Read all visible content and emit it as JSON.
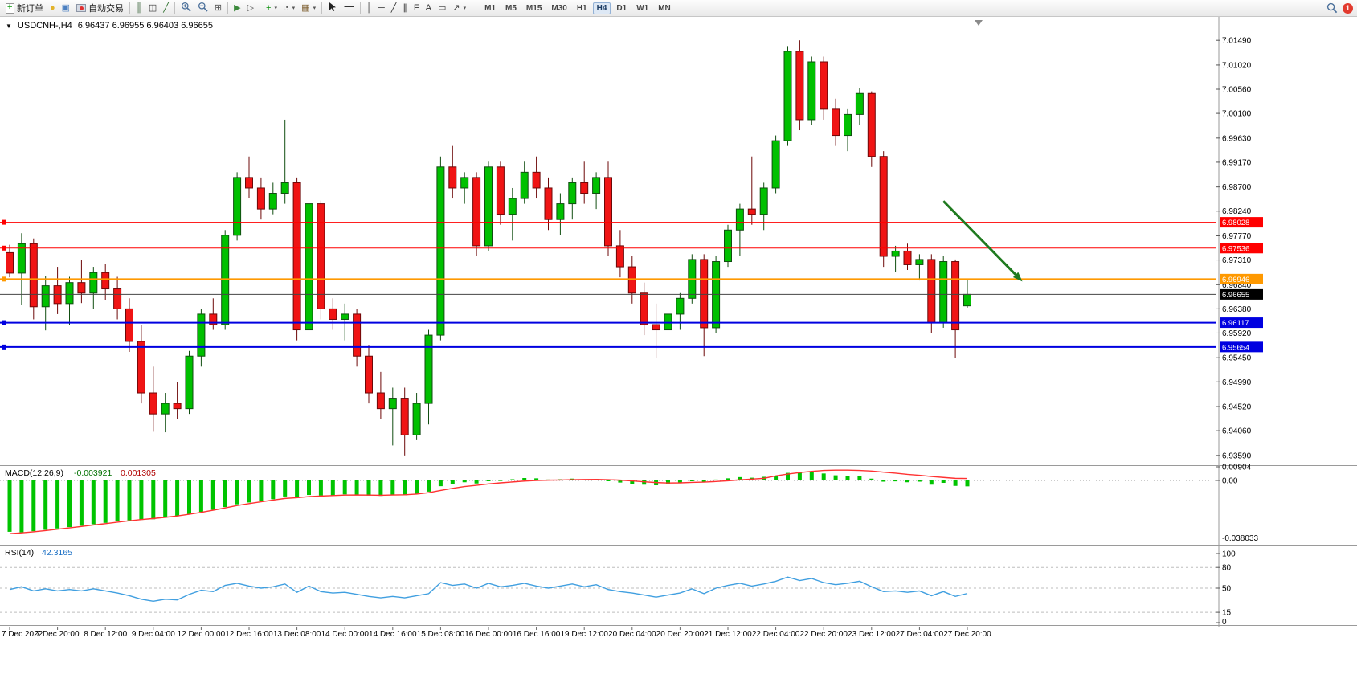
{
  "toolbar": {
    "caret_glyph": "▾",
    "notification_badge": "1",
    "items": [
      {
        "name": "new-order-button",
        "label": "新订单",
        "icon": "doc-plus"
      },
      {
        "name": "lamp-icon",
        "glyph": "●",
        "color": "#e2b32c"
      },
      {
        "name": "monitor-icon",
        "glyph": "▣",
        "color": "#4a7fc1"
      },
      {
        "name": "auto-trading-button",
        "label": "自动交易",
        "icon": "robot"
      },
      {
        "sep": true
      },
      {
        "name": "bar-chart-icon",
        "glyph": "║",
        "color": "#3d663d"
      },
      {
        "name": "candlestick-chart-icon",
        "glyph": "◫",
        "color": "#333333"
      },
      {
        "name": "line-chart-icon",
        "glyph": "╱",
        "color": "#2a6e2a"
      },
      {
        "sep": true
      },
      {
        "name": "zoom-in-icon",
        "icon": "zoom-in"
      },
      {
        "name": "zoom-out-icon",
        "icon": "zoom-out"
      },
      {
        "name": "tile-windows-icon",
        "glyph": "⊞",
        "color": "#555555"
      },
      {
        "sep": true
      },
      {
        "name": "auto-scroll-icon",
        "glyph": "▶",
        "color": "#3c8a3c"
      },
      {
        "name": "chart-shift-icon",
        "glyph": "▷",
        "color": "#555555"
      },
      {
        "sep": true
      },
      {
        "name": "indicators-button",
        "glyph": "+",
        "color": "#0a910a",
        "caret": true
      },
      {
        "name": "periods-button",
        "glyph": "◔",
        "color": "#555555",
        "caret": true
      },
      {
        "name": "templates-button",
        "glyph": "▦",
        "color": "#7a5a2a",
        "caret": true
      },
      {
        "sep": true
      },
      {
        "name": "cursor-icon",
        "icon": "cursor"
      },
      {
        "name": "crosshair-icon",
        "icon": "crosshair"
      },
      {
        "sep": true
      },
      {
        "name": "vertical-line-icon",
        "glyph": "│",
        "color": "#333333"
      },
      {
        "name": "horizontal-line-icon",
        "glyph": "─",
        "color": "#333333"
      },
      {
        "name": "trendline-icon",
        "glyph": "╱",
        "color": "#333333"
      },
      {
        "name": "channel-icon",
        "glyph": "∥",
        "color": "#333333"
      },
      {
        "name": "fibonacci-icon",
        "glyph": "F",
        "color": "#333333"
      },
      {
        "name": "text-icon",
        "glyph": "A",
        "color": "#333333"
      },
      {
        "name": "text-label-icon",
        "glyph": "▭",
        "color": "#333333"
      },
      {
        "name": "arrows-tool-icon",
        "glyph": "↗",
        "color": "#333333",
        "caret": true
      },
      {
        "sep": true
      }
    ],
    "timeframes": {
      "items": [
        "M1",
        "M5",
        "M15",
        "M30",
        "H1",
        "H4",
        "D1",
        "W1",
        "MN"
      ],
      "active": "H4"
    }
  },
  "chart_title": {
    "dropdown_glyph": "▼",
    "symbol_period": "USDCNH-,H4",
    "ohlc": "6.96437 6.96955 6.96403 6.96655"
  },
  "chart_data": {
    "type": "candlestick",
    "symbol": "USDCNH-",
    "timeframe": "H4",
    "current_bar": {
      "open": 6.96437,
      "high": 6.96955,
      "low": 6.96403,
      "close": 6.96655
    },
    "colors": {
      "bull": "#00C000",
      "bull_edge": "#114e11",
      "bear": "#F01414",
      "bear_edge": "#6d0808",
      "red_line": "#FF0000",
      "orange_line": "#FF9900",
      "blue_line": "#0000E0",
      "current_line": "#444444",
      "current_tag": "#000000",
      "macd_hist": "#00C400",
      "macd_signal": "#FF3232",
      "rsi_line": "#409FE0",
      "arrow": "#1F7A1F",
      "axis_text": "#000000",
      "separator": "#9a9a9a",
      "level_dash": "#bdbdbd"
    },
    "price_axis": {
      "ticks": [
        "7.01490",
        "7.01020",
        "7.00560",
        "7.00100",
        "6.99630",
        "6.99170",
        "6.98700",
        "6.98240",
        "6.97770",
        "6.97310",
        "6.96840",
        "6.96380",
        "6.95920",
        "6.95450",
        "6.94990",
        "6.94520",
        "6.94060",
        "6.93590"
      ],
      "view_max": 7.016,
      "view_min": 6.9345
    },
    "time_labels": [
      "7 Dec 2022",
      "7 Dec 20:00",
      "8 Dec 12:00",
      "9 Dec 04:00",
      "12 Dec 00:00",
      "12 Dec 16:00",
      "13 Dec 08:00",
      "14 Dec 00:00",
      "14 Dec 16:00",
      "15 Dec 08:00",
      "16 Dec 00:00",
      "16 Dec 16:00",
      "19 Dec 12:00",
      "20 Dec 04:00",
      "20 Dec 20:00",
      "21 Dec 12:00",
      "22 Dec 04:00",
      "22 Dec 20:00",
      "23 Dec 12:00",
      "27 Dec 04:00",
      "27 Dec 20:00"
    ],
    "candles": [
      [
        6.9745,
        6.976,
        6.9698,
        6.9706
      ],
      [
        6.9706,
        6.9782,
        6.9645,
        6.9762
      ],
      [
        6.9762,
        6.9772,
        6.9618,
        6.9642
      ],
      [
        6.9642,
        6.9701,
        6.9597,
        6.9682
      ],
      [
        6.9682,
        6.9718,
        6.9628,
        6.9648
      ],
      [
        6.9648,
        6.9699,
        6.9607,
        6.9688
      ],
      [
        6.9688,
        6.9731,
        6.9649,
        6.9668
      ],
      [
        6.9668,
        6.9718,
        6.9638,
        6.9707
      ],
      [
        6.9707,
        6.9724,
        6.9655,
        6.9676
      ],
      [
        6.9676,
        6.9699,
        6.9618,
        6.9638
      ],
      [
        6.9638,
        6.9658,
        6.9556,
        6.9576
      ],
      [
        6.9576,
        6.9607,
        6.9458,
        6.9478
      ],
      [
        6.9478,
        6.9528,
        6.9404,
        6.9438
      ],
      [
        6.9438,
        6.9478,
        6.9403,
        6.9458
      ],
      [
        6.9458,
        6.9498,
        6.9428,
        6.9448
      ],
      [
        6.9448,
        6.9558,
        6.9438,
        6.9548
      ],
      [
        6.9548,
        6.9638,
        6.9528,
        6.9628
      ],
      [
        6.9628,
        6.9658,
        6.9598,
        6.9608
      ],
      [
        6.9608,
        6.9788,
        6.9598,
        6.9778
      ],
      [
        6.9778,
        6.9898,
        6.9768,
        6.9888
      ],
      [
        6.9888,
        6.9928,
        6.9848,
        6.9868
      ],
      [
        6.9868,
        6.9888,
        6.9808,
        6.9828
      ],
      [
        6.9828,
        6.9878,
        6.9818,
        6.9858
      ],
      [
        6.9858,
        6.9998,
        6.9838,
        6.9878
      ],
      [
        6.9878,
        6.9888,
        6.9578,
        6.9598
      ],
      [
        6.9598,
        6.9848,
        6.9588,
        6.9838
      ],
      [
        6.9838,
        6.9844,
        6.9618,
        6.9638
      ],
      [
        6.9638,
        6.9658,
        6.9598,
        6.9618
      ],
      [
        6.9618,
        6.9648,
        6.9578,
        6.9628
      ],
      [
        6.9628,
        6.9638,
        6.9528,
        6.9548
      ],
      [
        6.9548,
        6.9568,
        6.9458,
        6.9478
      ],
      [
        6.9478,
        6.9518,
        6.9428,
        6.9448
      ],
      [
        6.9448,
        6.9488,
        6.9378,
        6.9468
      ],
      [
        6.9468,
        6.9488,
        6.9359,
        6.9398
      ],
      [
        6.9398,
        6.9478,
        6.9388,
        6.9458
      ],
      [
        6.9458,
        6.9598,
        6.9418,
        6.9588
      ],
      [
        6.9588,
        6.9928,
        6.9578,
        6.9908
      ],
      [
        6.9908,
        6.9948,
        6.9848,
        6.9868
      ],
      [
        6.9868,
        6.9898,
        6.9838,
        6.9888
      ],
      [
        6.9888,
        6.9898,
        6.9738,
        6.9758
      ],
      [
        6.9758,
        6.9918,
        6.9748,
        6.9908
      ],
      [
        6.9908,
        6.9918,
        6.9798,
        6.9818
      ],
      [
        6.9818,
        6.9868,
        6.9768,
        6.9848
      ],
      [
        6.9848,
        6.9918,
        6.9838,
        6.9898
      ],
      [
        6.9898,
        6.9928,
        6.9848,
        6.9868
      ],
      [
        6.9868,
        6.9888,
        6.9788,
        6.9808
      ],
      [
        6.9808,
        6.9858,
        6.9778,
        6.9838
      ],
      [
        6.9838,
        6.9888,
        6.9808,
        6.9878
      ],
      [
        6.9878,
        6.9918,
        6.9838,
        6.9858
      ],
      [
        6.9858,
        6.9898,
        6.9828,
        6.9888
      ],
      [
        6.9888,
        6.9918,
        6.9738,
        6.9758
      ],
      [
        6.9758,
        6.9788,
        6.9698,
        6.9718
      ],
      [
        6.9718,
        6.9738,
        6.9648,
        6.9668
      ],
      [
        6.9668,
        6.9688,
        6.9588,
        6.9608
      ],
      [
        6.9608,
        6.9648,
        6.9545,
        6.9598
      ],
      [
        6.9598,
        6.9638,
        6.9558,
        6.9628
      ],
      [
        6.9628,
        6.9668,
        6.9598,
        6.9658
      ],
      [
        6.9658,
        6.9742,
        6.9648,
        6.9732
      ],
      [
        6.9732,
        6.9742,
        6.9548,
        6.9602
      ],
      [
        6.9602,
        6.9738,
        6.9592,
        6.9728
      ],
      [
        6.9728,
        6.9798,
        6.9718,
        6.9788
      ],
      [
        6.9788,
        6.9838,
        6.9738,
        6.9828
      ],
      [
        6.9828,
        6.9928,
        6.9798,
        6.9818
      ],
      [
        6.9818,
        6.9878,
        6.9788,
        6.9868
      ],
      [
        6.9868,
        6.9968,
        6.9858,
        6.9958
      ],
      [
        6.9958,
        7.0138,
        6.9948,
        7.0128
      ],
      [
        7.0128,
        7.0149,
        6.9978,
        6.9998
      ],
      [
        6.9998,
        7.0118,
        6.9988,
        7.0108
      ],
      [
        7.0108,
        7.0118,
        6.9998,
        7.0018
      ],
      [
        7.0018,
        7.0038,
        6.9948,
        6.9968
      ],
      [
        6.9968,
        7.0018,
        6.9938,
        7.0008
      ],
      [
        7.0008,
        7.0058,
        6.9988,
        7.0048
      ],
      [
        7.0048,
        7.0052,
        6.9908,
        6.9928
      ],
      [
        6.9928,
        6.9938,
        6.9718,
        6.9738
      ],
      [
        6.9738,
        6.9758,
        6.9708,
        6.9748
      ],
      [
        6.9748,
        6.9762,
        6.9712,
        6.9722
      ],
      [
        6.9722,
        6.9742,
        6.9692,
        6.9732
      ],
      [
        6.9732,
        6.9742,
        6.9592,
        6.9612
      ],
      [
        6.9612,
        6.9738,
        6.9602,
        6.9728
      ],
      [
        6.9728,
        6.9732,
        6.9545,
        6.9598
      ],
      [
        6.96437,
        6.96955,
        6.96403,
        6.96655
      ]
    ],
    "hlines": [
      {
        "price": 6.98028,
        "label": "6.98028",
        "color": "#FF0000",
        "width": 1,
        "handle": true,
        "name": "hline-6.98028"
      },
      {
        "price": 6.97536,
        "label": "6.97536",
        "color": "#FF0000",
        "width": 1,
        "handle": true,
        "name": "hline-6.97536"
      },
      {
        "price": 6.96946,
        "label": "6.96946",
        "color": "#FF9900",
        "width": 2,
        "handle": true,
        "name": "hline-6.96946"
      },
      {
        "price": 6.96117,
        "label": "6.96117",
        "color": "#0000E0",
        "width": 2,
        "handle": true,
        "name": "hline-6.96117"
      },
      {
        "price": 6.95654,
        "label": "6.95654",
        "color": "#0000E0",
        "width": 2,
        "handle": true,
        "name": "hline-6.95654"
      }
    ],
    "current_price": {
      "price": 6.96655,
      "label": "6.96655"
    },
    "arrow": {
      "from_bar": 79,
      "from_price": 6.9843,
      "to_bar": 85.6,
      "to_price": 6.969,
      "width": 3
    },
    "macd": {
      "label": "MACD(12,26,9)",
      "value_main": "-0.003921",
      "value_signal": "0.001305",
      "axis_ticks": [
        "0.00904",
        "0.00",
        "-0.038033"
      ],
      "axis_values": [
        0.00904,
        0,
        -0.038033
      ],
      "histogram": [
        -0.034,
        -0.0344,
        -0.0336,
        -0.0327,
        -0.0318,
        -0.0309,
        -0.03,
        -0.029,
        -0.0281,
        -0.0271,
        -0.0264,
        -0.0261,
        -0.0257,
        -0.0247,
        -0.0237,
        -0.0223,
        -0.0208,
        -0.0194,
        -0.0176,
        -0.0158,
        -0.0146,
        -0.0136,
        -0.0124,
        -0.0106,
        -0.0112,
        -0.0096,
        -0.01,
        -0.0098,
        -0.0092,
        -0.0096,
        -0.01,
        -0.0102,
        -0.0096,
        -0.0098,
        -0.0088,
        -0.0074,
        -0.0038,
        -0.0022,
        -0.0012,
        -0.002,
        -0.0004,
        0.0002,
        0.0008,
        0.0016,
        0.0014,
        0.0006,
        0.0008,
        0.0012,
        0.0008,
        0.001,
        -0.0004,
        -0.0014,
        -0.0022,
        -0.0028,
        -0.0032,
        -0.0026,
        -0.0016,
        0.0,
        -0.0008,
        0.0006,
        0.0014,
        0.0022,
        0.0018,
        0.0024,
        0.0032,
        0.005,
        0.0056,
        0.006,
        0.0046,
        0.0034,
        0.0028,
        0.0032,
        0.0012,
        -0.0008,
        -0.0006,
        -0.0012,
        -0.0008,
        -0.0028,
        -0.0016,
        -0.0036,
        -0.0039
      ],
      "signal": [
        -0.0352,
        -0.0347,
        -0.034,
        -0.0332,
        -0.0323,
        -0.0314,
        -0.0305,
        -0.0295,
        -0.0286,
        -0.0276,
        -0.0267,
        -0.0259,
        -0.0252,
        -0.0244,
        -0.0235,
        -0.0224,
        -0.0211,
        -0.0197,
        -0.0182,
        -0.0166,
        -0.0153,
        -0.0141,
        -0.013,
        -0.0119,
        -0.0114,
        -0.0107,
        -0.0103,
        -0.01,
        -0.0097,
        -0.0096,
        -0.0097,
        -0.0098,
        -0.0096,
        -0.0095,
        -0.009,
        -0.0081,
        -0.0066,
        -0.0052,
        -0.004,
        -0.0032,
        -0.0023,
        -0.0016,
        -0.001,
        -0.0004,
        0.0,
        0.0002,
        0.0003,
        0.0005,
        0.0006,
        0.0007,
        0.0005,
        0.0002,
        -0.0003,
        -0.0009,
        -0.0014,
        -0.0017,
        -0.0016,
        -0.0013,
        -0.0011,
        -0.0007,
        -0.0002,
        0.0004,
        0.0009,
        0.0014,
        0.003,
        0.0042,
        0.0052,
        0.006,
        0.0066,
        0.0068,
        0.0068,
        0.0066,
        0.0062,
        0.0055,
        0.0048,
        0.004,
        0.0034,
        0.0026,
        0.002,
        0.0014,
        0.0013
      ]
    },
    "rsi": {
      "label": "RSI(14)",
      "value": "42.3165",
      "levels": [
        80,
        50,
        15
      ],
      "axis_ticks": [
        "100",
        "80",
        "50",
        "15",
        "0"
      ],
      "axis_values": [
        100,
        80,
        50,
        15,
        0
      ],
      "values": [
        48,
        52,
        46,
        49,
        46,
        48,
        46,
        49,
        46,
        43,
        39,
        34,
        31,
        34,
        33,
        41,
        47,
        45,
        54,
        57,
        53,
        50,
        52,
        56,
        44,
        53,
        45,
        43,
        44,
        41,
        38,
        36,
        38,
        36,
        39,
        42,
        58,
        54,
        56,
        50,
        57,
        52,
        54,
        57,
        53,
        50,
        53,
        56,
        52,
        55,
        48,
        45,
        43,
        40,
        37,
        40,
        43,
        49,
        42,
        50,
        54,
        57,
        53,
        56,
        60,
        66,
        61,
        64,
        58,
        55,
        57,
        60,
        52,
        45,
        46,
        44,
        46,
        39,
        45,
        38,
        42.3
      ]
    }
  }
}
